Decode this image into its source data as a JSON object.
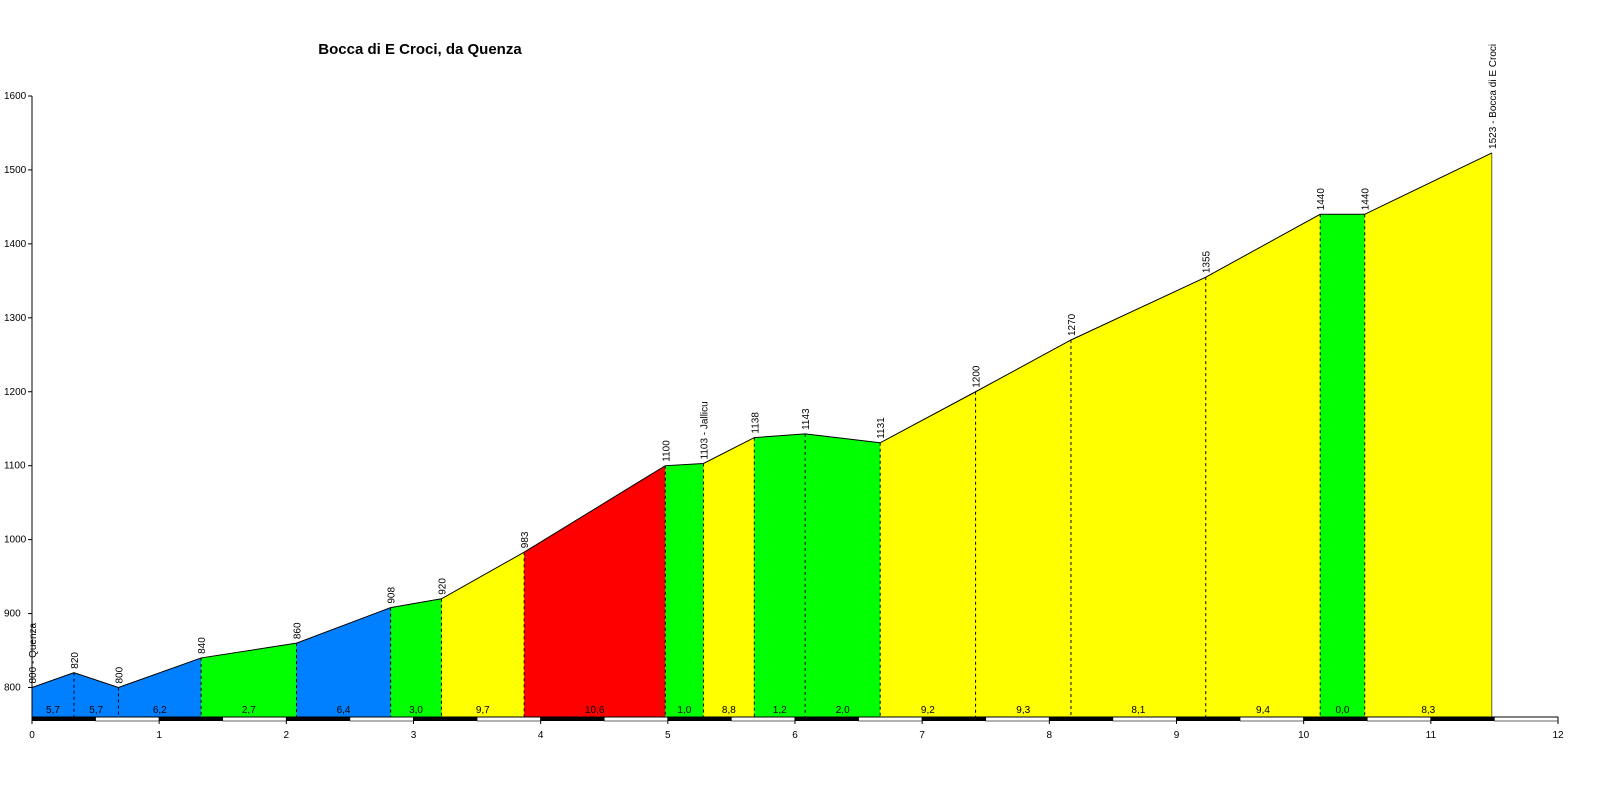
{
  "chart_data": {
    "type": "area",
    "title": "Bocca di E Croci, da Quenza",
    "xlabel": "",
    "ylabel": "",
    "xlim": [
      0,
      12
    ],
    "ylim": [
      760,
      1600
    ],
    "grid": false,
    "x_ticks": [
      0,
      1,
      2,
      3,
      4,
      5,
      6,
      7,
      8,
      9,
      10,
      11,
      12
    ],
    "y_ticks": [
      800,
      900,
      1000,
      1100,
      1200,
      1300,
      1400,
      1500,
      1600
    ],
    "colors": {
      "blue": "#0080ff",
      "green": "#00ff00",
      "yellow": "#ffff00",
      "red": "#ff0000"
    },
    "points": [
      {
        "x": 0.0,
        "elev": 800,
        "label": "800 - Quenza"
      },
      {
        "x": 0.33,
        "elev": 820,
        "label": "820"
      },
      {
        "x": 0.68,
        "elev": 800,
        "label": "800"
      },
      {
        "x": 1.33,
        "elev": 840,
        "label": "840"
      },
      {
        "x": 2.08,
        "elev": 860,
        "label": "860"
      },
      {
        "x": 2.82,
        "elev": 908,
        "label": "908"
      },
      {
        "x": 3.22,
        "elev": 920,
        "label": "920"
      },
      {
        "x": 3.87,
        "elev": 983,
        "label": "983"
      },
      {
        "x": 4.98,
        "elev": 1100,
        "label": "1100"
      },
      {
        "x": 5.28,
        "elev": 1103,
        "label": "1103 - Jallicu"
      },
      {
        "x": 5.68,
        "elev": 1138,
        "label": "1138"
      },
      {
        "x": 6.08,
        "elev": 1143,
        "label": "1143"
      },
      {
        "x": 6.67,
        "elev": 1131,
        "label": "1131"
      },
      {
        "x": 7.42,
        "elev": 1200,
        "label": "1200"
      },
      {
        "x": 8.17,
        "elev": 1270,
        "label": "1270"
      },
      {
        "x": 9.23,
        "elev": 1355,
        "label": "1355"
      },
      {
        "x": 10.13,
        "elev": 1440,
        "label": "1440"
      },
      {
        "x": 10.48,
        "elev": 1440,
        "label": "1440"
      },
      {
        "x": 11.48,
        "elev": 1523,
        "label": "1523 - Bocca di E Croci"
      }
    ],
    "segments": [
      {
        "gradient": "5,7",
        "color": "blue"
      },
      {
        "gradient": "5,7",
        "color": "blue"
      },
      {
        "gradient": "6,2",
        "color": "blue"
      },
      {
        "gradient": "2,7",
        "color": "green"
      },
      {
        "gradient": "6,4",
        "color": "blue"
      },
      {
        "gradient": "3,0",
        "color": "green"
      },
      {
        "gradient": "9,7",
        "color": "yellow"
      },
      {
        "gradient": "10,6",
        "color": "red"
      },
      {
        "gradient": "1,0",
        "color": "green"
      },
      {
        "gradient": "8,8",
        "color": "yellow"
      },
      {
        "gradient": "1,2",
        "color": "green"
      },
      {
        "gradient": "2,0",
        "color": "green"
      },
      {
        "gradient": "9,2",
        "color": "yellow"
      },
      {
        "gradient": "9,3",
        "color": "yellow"
      },
      {
        "gradient": "8,1",
        "color": "yellow"
      },
      {
        "gradient": "9,4",
        "color": "yellow"
      },
      {
        "gradient": "0,0",
        "color": "green"
      },
      {
        "gradient": "8,3",
        "color": "yellow"
      }
    ]
  }
}
